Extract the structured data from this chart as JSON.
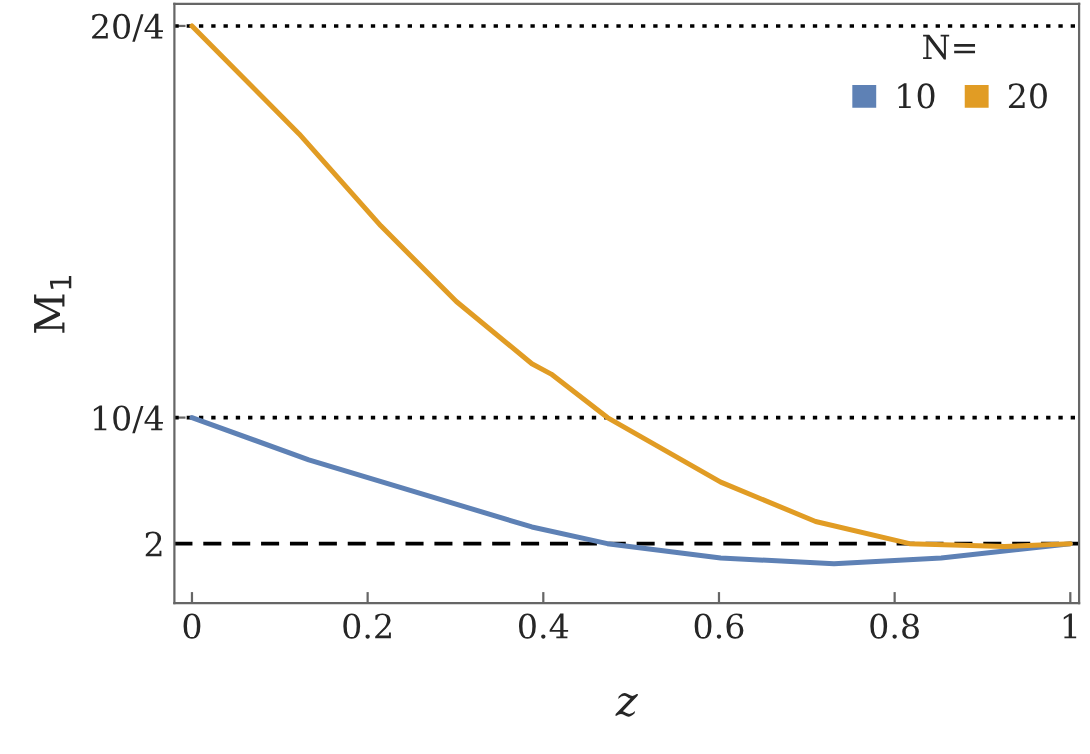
{
  "chart_data": {
    "type": "line",
    "xlabel": "z",
    "ylabel": "M$_{1}$",
    "legend_title": "N=",
    "legend": "top right",
    "grid": false,
    "log": "y",
    "xlim": [
      -0.02,
      1.01
    ],
    "ylim": [
      1.8,
      5.2
    ],
    "xticks": [
      0,
      {
        "value": 0.2,
        "label": "0.2"
      },
      {
        "value": 0.4,
        "label": "0.4"
      },
      {
        "value": 0.6,
        "label": "0.6"
      },
      {
        "value": 0.8,
        "label": "0.8"
      },
      1
    ],
    "yticks": [
      2,
      {
        "value": 2.5,
        "label": "10/4"
      },
      {
        "value": 5,
        "label": "20/4"
      }
    ],
    "ref_lines": [
      {
        "axis": "y",
        "value": 5,
        "line_style": "dotted",
        "color": "#000000"
      },
      {
        "axis": "y",
        "value": 2.5,
        "line_style": "dotted",
        "color": "#000000"
      },
      {
        "axis": "y",
        "value": 2,
        "line_style": "dashed",
        "color": "#000000"
      }
    ],
    "series": [
      {
        "name": "10",
        "color": "#5e81b5",
        "x": [
          0,
          0.133,
          0.387,
          0.473,
          0.602,
          0.731,
          0.853,
          1.0
        ],
        "values": [
          2.5,
          2.32,
          2.06,
          2.0,
          1.95,
          1.93,
          1.95,
          2.0
        ]
      },
      {
        "name": "20",
        "color": "#e19c24",
        "x": [
          0,
          0.122,
          0.215,
          0.301,
          0.387,
          0.409,
          0.473,
          0.602,
          0.71,
          0.817,
          0.925,
          1.0
        ],
        "values": [
          5.0,
          4.13,
          3.51,
          3.07,
          2.75,
          2.7,
          2.5,
          2.23,
          2.08,
          2.0,
          1.99,
          2.0
        ]
      }
    ]
  }
}
